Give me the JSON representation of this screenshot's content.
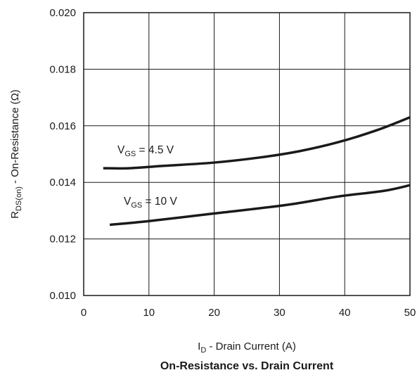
{
  "chart_data": {
    "type": "line",
    "title": "On-Resistance vs. Drain Current",
    "xlabel": {
      "main": "I",
      "sub": "D",
      "rest": " - Drain Current (A)"
    },
    "ylabel": {
      "main": "R",
      "sub": "DS(on)",
      "rest": " - On-Resistance (Ω)"
    },
    "xlim": [
      0,
      50
    ],
    "ylim": [
      0.01,
      0.02
    ],
    "x_ticks": [
      "0",
      "10",
      "20",
      "30",
      "40",
      "50"
    ],
    "y_ticks": [
      "0.010",
      "0.012",
      "0.014",
      "0.016",
      "0.018",
      "0.020"
    ],
    "grid": true,
    "series": [
      {
        "label": {
          "main": "V",
          "sub": "GS",
          "rest": " = 4.5 V"
        },
        "x": [
          3,
          7,
          12,
          20,
          27,
          33,
          39,
          45,
          50
        ],
        "y": [
          0.0145,
          0.0145,
          0.01458,
          0.0147,
          0.01488,
          0.0151,
          0.01542,
          0.01585,
          0.0163
        ]
      },
      {
        "label": {
          "main": "V",
          "sub": "GS",
          "rest": " = 10 V"
        },
        "x": [
          4,
          10,
          20,
          31,
          39,
          46,
          50
        ],
        "y": [
          0.0125,
          0.01263,
          0.0129,
          0.0132,
          0.0135,
          0.0137,
          0.0139
        ]
      }
    ]
  }
}
